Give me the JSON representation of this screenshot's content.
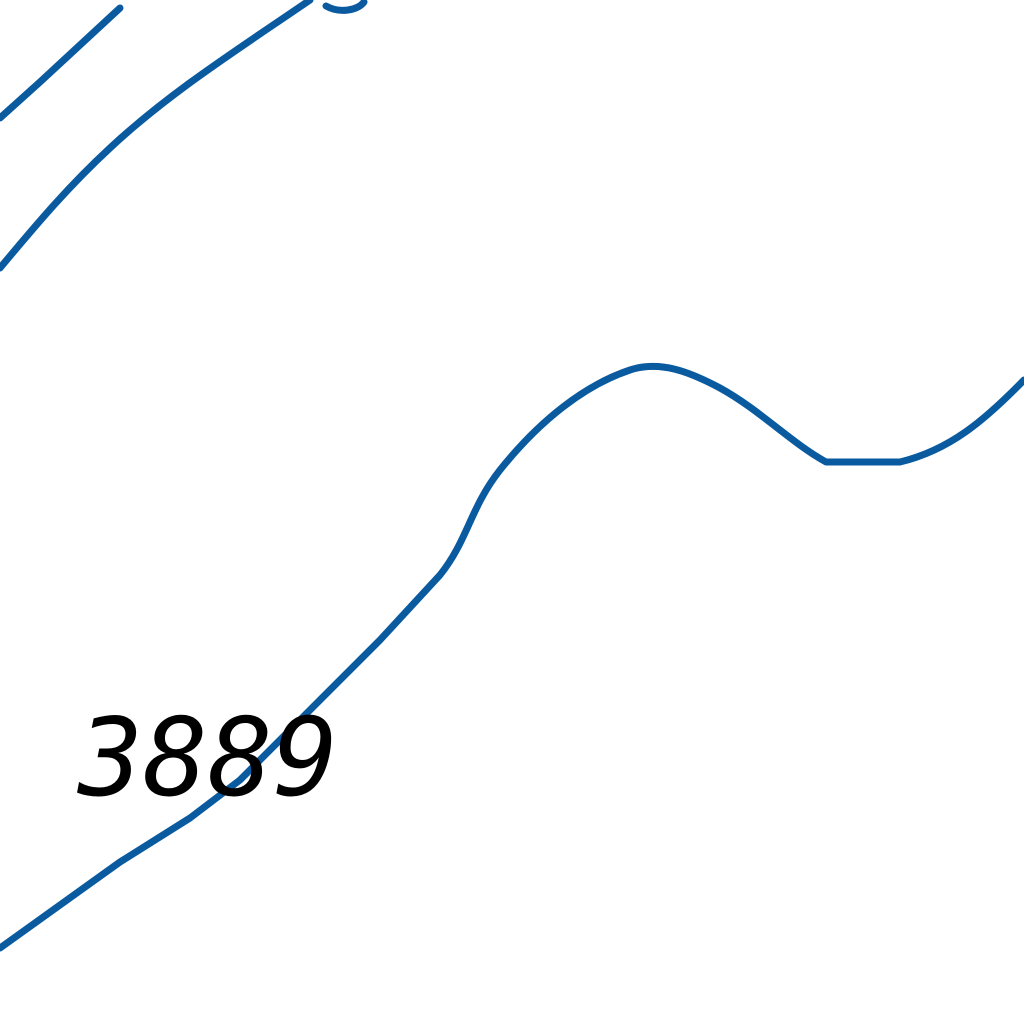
{
  "map": {
    "contour_color": "#0a5aa0",
    "label_color": "#000000",
    "elevation_label": "3889"
  }
}
